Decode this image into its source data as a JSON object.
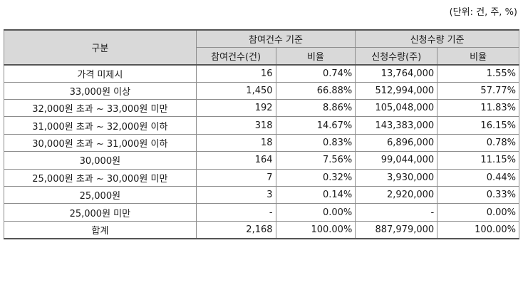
{
  "unit_note": "(단위: 건, 주, %)",
  "header": {
    "category": "구분",
    "group_count": "참여건수 기준",
    "group_qty": "신청수량 기준",
    "count": "참여건수(건)",
    "ratio1": "비율",
    "qty": "신청수량(주)",
    "ratio2": "비율"
  },
  "rows": [
    {
      "label": "가격 미제시",
      "count": "16",
      "ratio1": "0.74%",
      "qty": "13,764,000",
      "ratio2": "1.55%"
    },
    {
      "label": "33,000원 이상",
      "count": "1,450",
      "ratio1": "66.88%",
      "qty": "512,994,000",
      "ratio2": "57.77%"
    },
    {
      "label": "32,000원 초과 ~ 33,000원 미만",
      "count": "192",
      "ratio1": "8.86%",
      "qty": "105,048,000",
      "ratio2": "11.83%"
    },
    {
      "label": "31,000원 초과 ~ 32,000원 이하",
      "count": "318",
      "ratio1": "14.67%",
      "qty": "143,383,000",
      "ratio2": "16.15%"
    },
    {
      "label": "30,000원 초과 ~ 31,000원 이하",
      "count": "18",
      "ratio1": "0.83%",
      "qty": "6,896,000",
      "ratio2": "0.78%"
    },
    {
      "label": "30,000원",
      "count": "164",
      "ratio1": "7.56%",
      "qty": "99,044,000",
      "ratio2": "11.15%"
    },
    {
      "label": "25,000원 초과 ~ 30,000원 미만",
      "count": "7",
      "ratio1": "0.32%",
      "qty": "3,930,000",
      "ratio2": "0.44%"
    },
    {
      "label": "25,000원",
      "count": "3",
      "ratio1": "0.14%",
      "qty": "2,920,000",
      "ratio2": "0.33%"
    },
    {
      "label": "25,000원 미만",
      "count": "-",
      "ratio1": "0.00%",
      "qty": "-",
      "ratio2": "0.00%"
    },
    {
      "label": "합계",
      "count": "2,168",
      "ratio1": "100.00%",
      "qty": "887,979,000",
      "ratio2": "100.00%"
    }
  ]
}
